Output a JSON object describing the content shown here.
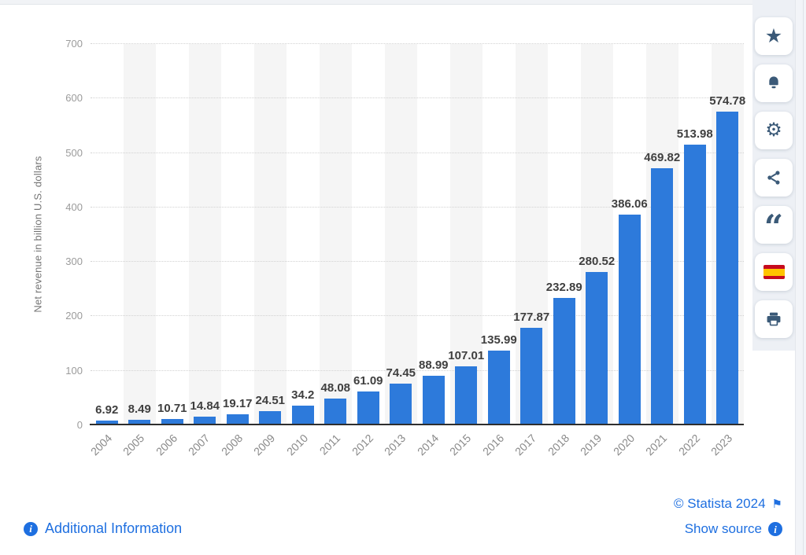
{
  "chart_data": {
    "type": "bar",
    "title": "",
    "xlabel": "",
    "ylabel": "Net revenue in billion U.S. dollars",
    "categories": [
      "2004",
      "2005",
      "2006",
      "2007",
      "2008",
      "2009",
      "2010",
      "2011",
      "2012",
      "2013",
      "2014",
      "2015",
      "2016",
      "2017",
      "2018",
      "2019",
      "2020",
      "2021",
      "2022",
      "2023"
    ],
    "values": [
      6.92,
      8.49,
      10.71,
      14.84,
      19.17,
      24.51,
      34.2,
      48.08,
      61.09,
      74.45,
      88.99,
      107.01,
      135.99,
      177.87,
      232.89,
      280.52,
      386.06,
      469.82,
      513.98,
      574.78
    ],
    "ylim": [
      0,
      700
    ],
    "yticks": [
      0,
      100,
      200,
      300,
      400,
      500,
      600,
      700
    ],
    "grid": "horizontal-dotted",
    "legend": null,
    "value_labels_shown": true
  },
  "sidebar": {
    "buttons": [
      {
        "name": "favorite-button",
        "icon": "star-icon"
      },
      {
        "name": "notifications-button",
        "icon": "bell-icon"
      },
      {
        "name": "settings-button",
        "icon": "gear-icon"
      },
      {
        "name": "share-button",
        "icon": "share-icon"
      },
      {
        "name": "cite-button",
        "icon": "quote-icon"
      },
      {
        "name": "language-spanish-button",
        "icon": "spain-flag-icon"
      },
      {
        "name": "print-button",
        "icon": "printer-icon"
      }
    ]
  },
  "footer": {
    "additional_information_label": "Additional Information",
    "copyright_label": "© Statista 2024",
    "show_source_label": "Show source"
  },
  "colors": {
    "bar": "#2d7adb",
    "link": "#1e6fe0",
    "icon": "#3b5a78",
    "value_label": "#3f3f3f",
    "tick_label": "#9b9b9b",
    "year_label": "#8a8a8a",
    "axis_title": "#757575",
    "stripe": "#f5f5f5",
    "sidebar_bg": "#edf0f5",
    "gridline": "#d2d2d2",
    "axis_line": "#2e2e2e"
  }
}
